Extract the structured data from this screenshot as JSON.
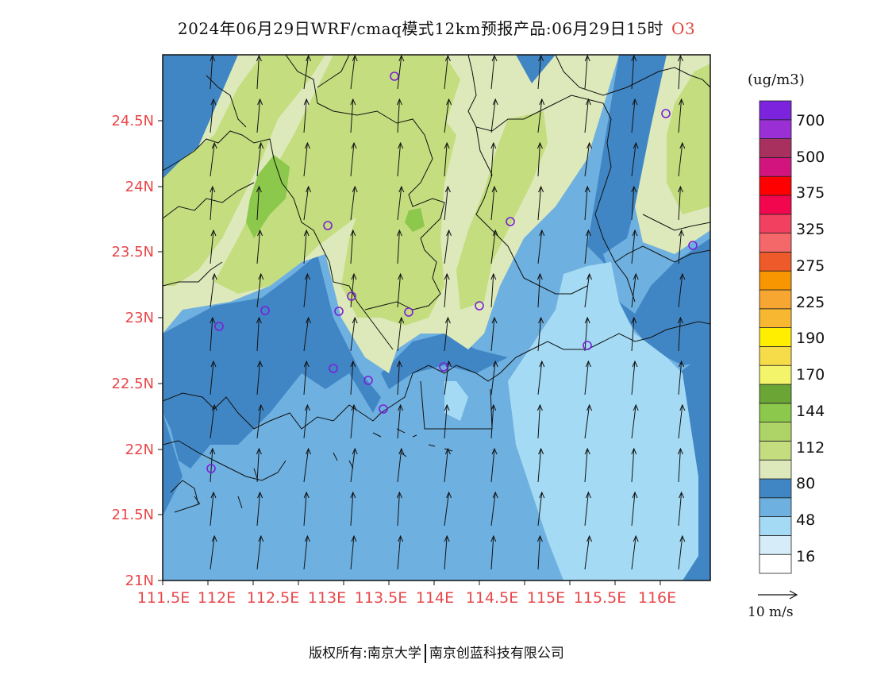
{
  "title": {
    "main": "2024年06月29日WRF/cmaq模式12km预报产品:06月29日15时",
    "species": "O3"
  },
  "units_label": "(ug/m3)",
  "reference_vector_label": "10 m/s",
  "footer": {
    "left": "版权所有:南京大学",
    "right": "南京创蓝科技有限公司"
  },
  "lat_labels": [
    "24.5N",
    "24N",
    "23.5N",
    "23N",
    "22.5N",
    "22N",
    "21.5N",
    "21N"
  ],
  "lon_labels": [
    "111.5E",
    "112E",
    "112.5E",
    "113E",
    "113.5E",
    "114E",
    "114.5E",
    "115E",
    "115.5E",
    "116E"
  ],
  "legend": {
    "labels": [
      "700",
      "500",
      "375",
      "325",
      "275",
      "225",
      "190",
      "170",
      "144",
      "112",
      "80",
      "48",
      "16"
    ],
    "colors": [
      "#ffffff",
      "#d6ecf9",
      "#a4daf4",
      "#6eb0e0",
      "#4186c4",
      "#dde9bb",
      "#c4dd7f",
      "#aed468",
      "#8cc84b",
      "#6aa535",
      "#f4f46a",
      "#f7dc4a",
      "#ffee00",
      "#f7b731",
      "#f7a631",
      "#f79600",
      "#ef5a2b",
      "#f4686a",
      "#f24060",
      "#f2064e",
      "#ff0000",
      "#d2157e",
      "#a8305f",
      "#9a2fd6",
      "#7c23dd"
    ]
  },
  "icon_names": [
    "station-marker-icon",
    "wind-arrow-icon"
  ]
}
